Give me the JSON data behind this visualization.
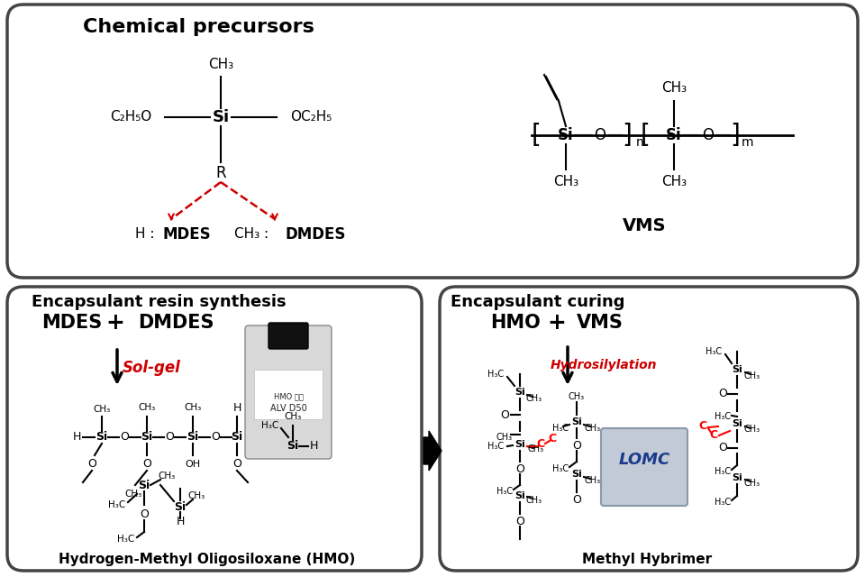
{
  "bg_color": "#ffffff",
  "title_top": "Chemical precursors",
  "title_bl": "Encapsulant resin synthesis",
  "title_br": "Encapsulant curing",
  "label_HMO_full": "Hydrogen-Methyl Oligosiloxane (HMO)",
  "label_methyl_hybrimer": "Methyl Hybrimer",
  "sol_gel_label": "Sol-gel",
  "hydrosilylation_label": "Hydrosilylation",
  "red_color": "#cc0000",
  "black_color": "#000000"
}
